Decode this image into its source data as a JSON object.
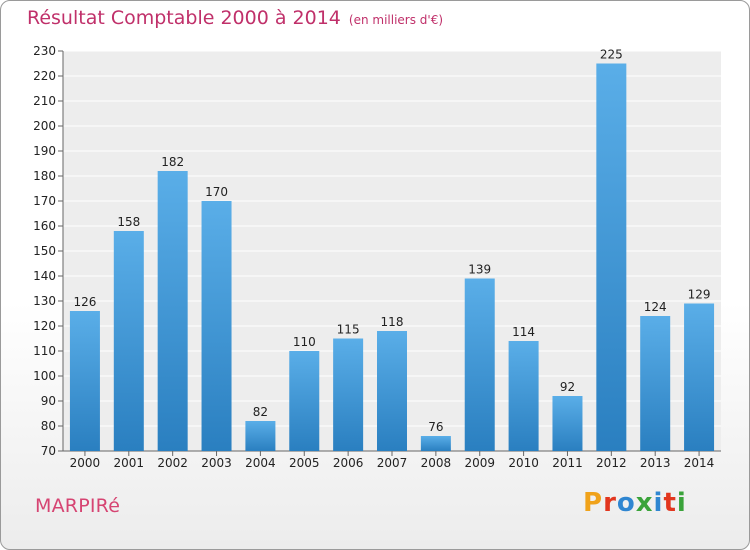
{
  "title": "Résultat Comptable 2000 à 2014",
  "subtitle": "(en milliers d'€)",
  "commune": "MARPIRé",
  "logo": {
    "text": "Proxiti",
    "letters": [
      "P",
      "r",
      "o",
      "x",
      "i",
      "t",
      "i"
    ],
    "colors": [
      "#f0a21a",
      "#e2361e",
      "#2f86d1",
      "#3aa33a",
      "#2f86d1",
      "#e2361e",
      "#3aa33a"
    ]
  },
  "colors": {
    "bar_light": "#5aaee8",
    "bar_dark": "#2a7fc0",
    "title": "#c0306a",
    "commune": "#d64472"
  },
  "chart_data": {
    "type": "bar",
    "categories": [
      "2000",
      "2001",
      "2002",
      "2003",
      "2004",
      "2005",
      "2006",
      "2007",
      "2008",
      "2009",
      "2010",
      "2011",
      "2012",
      "2013",
      "2014"
    ],
    "values": [
      126,
      158,
      182,
      170,
      82,
      110,
      115,
      118,
      76,
      139,
      114,
      92,
      225,
      124,
      129
    ],
    "ylim": [
      70,
      230
    ],
    "yticks": [
      70,
      80,
      90,
      100,
      110,
      120,
      130,
      140,
      150,
      160,
      170,
      180,
      190,
      200,
      210,
      220,
      230
    ],
    "grid": true
  }
}
